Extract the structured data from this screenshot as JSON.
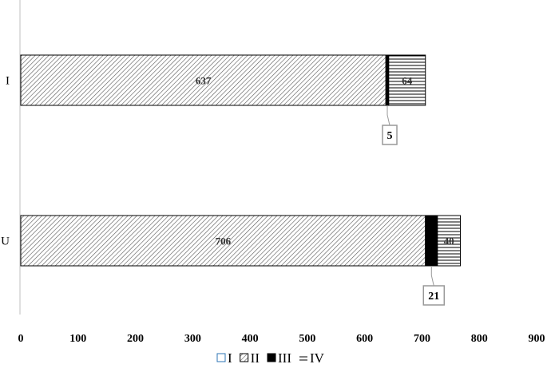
{
  "chart_data": {
    "type": "bar",
    "orientation": "horizontal",
    "stacked": true,
    "categories": [
      "I",
      "U"
    ],
    "series": [
      {
        "name": "I",
        "values": [
          0,
          0
        ],
        "pattern": "empty"
      },
      {
        "name": "II",
        "values": [
          637,
          706
        ],
        "pattern": "diagonal-hatch"
      },
      {
        "name": "III",
        "values": [
          5,
          21
        ],
        "pattern": "solid-black"
      },
      {
        "name": "IV",
        "values": [
          64,
          40
        ],
        "pattern": "horizontal-lines"
      }
    ],
    "xlim": [
      0,
      900
    ],
    "xticks": [
      0,
      100,
      200,
      300,
      400,
      500,
      600,
      700,
      800,
      900
    ],
    "inner_labels": [
      {
        "category": "I",
        "series": "II",
        "text": "637"
      },
      {
        "category": "I",
        "series": "IV",
        "text": "64"
      },
      {
        "category": "U",
        "series": "II",
        "text": "706"
      },
      {
        "category": "U",
        "series": "IV",
        "text": "40"
      }
    ],
    "callouts": [
      {
        "category": "I",
        "series": "III",
        "text": "5"
      },
      {
        "category": "U",
        "series": "III",
        "text": "21"
      }
    ],
    "legend_position": "bottom",
    "grid": false,
    "colors": {
      "stroke": "#000000",
      "hatch": "#555555",
      "axis": "#bfbfbf"
    }
  }
}
